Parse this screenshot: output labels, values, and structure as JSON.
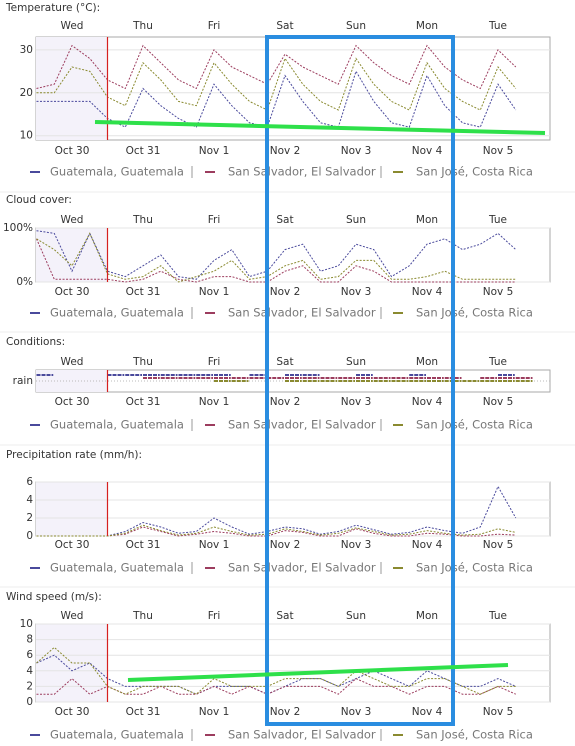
{
  "chart_data": [
    {
      "type": "line",
      "title": "Temperature (°C):",
      "weekdays": [
        "Wed",
        "Thu",
        "Fri",
        "Sat",
        "Sun",
        "Mon",
        "Tue"
      ],
      "categories": [
        null,
        null,
        "Oct 30",
        null,
        null,
        null,
        "Oct 31",
        null,
        null,
        null,
        "Nov 1",
        null,
        null,
        null,
        "Nov 2",
        null,
        null,
        null,
        "Nov 3",
        null,
        null,
        null,
        "Nov 4",
        null,
        null,
        null,
        "Nov 5",
        null
      ],
      "series": [
        {
          "name": "Guatemala, Guatemala",
          "color": "#4a4a9c",
          "values": [
            18,
            18,
            18,
            18,
            14,
            12,
            21,
            17,
            14,
            12,
            22,
            17,
            13,
            12,
            24,
            18,
            13,
            12,
            25,
            18,
            13,
            12,
            24,
            17,
            13,
            12,
            22,
            16
          ]
        },
        {
          "name": "San Salvador, El Salvador",
          "color": "#9c3d5e",
          "values": [
            21,
            22,
            31,
            28,
            23,
            21,
            31,
            27,
            23,
            21,
            30,
            26,
            24,
            22,
            29,
            26,
            24,
            22,
            31,
            27,
            24,
            22,
            31,
            26,
            23,
            21,
            30,
            26
          ]
        },
        {
          "name": "San José, Costa Rica",
          "color": "#8a8a30",
          "values": [
            20,
            20,
            26,
            25,
            19,
            17,
            27,
            23,
            18,
            17,
            27,
            22,
            18,
            16,
            28,
            22,
            18,
            16,
            28,
            22,
            18,
            16,
            27,
            21,
            18,
            16,
            26,
            21
          ]
        }
      ],
      "ylim": [
        9,
        33
      ],
      "yticks": [
        10,
        20,
        30
      ],
      "grid": true
    },
    {
      "type": "line",
      "title": "Cloud cover:",
      "weekdays": [
        "Wed",
        "Thu",
        "Fri",
        "Sat",
        "Sun",
        "Mon",
        "Tue"
      ],
      "categories": [
        null,
        null,
        "Oct 30",
        null,
        null,
        null,
        "Oct 31",
        null,
        null,
        null,
        "Nov 1",
        null,
        null,
        null,
        "Nov 2",
        null,
        null,
        null,
        "Nov 3",
        null,
        null,
        null,
        "Nov 4",
        null,
        null,
        null,
        "Nov 5",
        null
      ],
      "series": [
        {
          "name": "Guatemala, Guatemala",
          "color": "#4a4a9c",
          "values": [
            95,
            90,
            20,
            90,
            20,
            10,
            30,
            50,
            10,
            5,
            40,
            60,
            10,
            20,
            60,
            70,
            20,
            30,
            70,
            60,
            10,
            30,
            70,
            80,
            60,
            70,
            90,
            60
          ]
        },
        {
          "name": "San Salvador, El Salvador",
          "color": "#9c3d5e",
          "values": [
            80,
            5,
            5,
            5,
            5,
            0,
            5,
            20,
            5,
            0,
            10,
            10,
            0,
            0,
            20,
            30,
            0,
            0,
            30,
            20,
            0,
            0,
            0,
            0,
            0,
            0,
            0,
            0
          ]
        },
        {
          "name": "San José, Costa Rica",
          "color": "#8a8a30",
          "values": [
            80,
            60,
            30,
            90,
            15,
            5,
            10,
            30,
            0,
            10,
            20,
            40,
            5,
            10,
            30,
            40,
            5,
            10,
            40,
            40,
            5,
            5,
            10,
            20,
            5,
            5,
            5,
            5
          ]
        }
      ],
      "ylim": [
        0,
        100
      ],
      "yticks": [
        {
          "value": 0,
          "label": "0%"
        },
        {
          "value": 100,
          "label": "100%"
        }
      ],
      "grid": true
    },
    {
      "type": "strip",
      "title": "Conditions:",
      "weekdays": [
        "Wed",
        "Thu",
        "Fri",
        "Sat",
        "Sun",
        "Mon",
        "Tue"
      ],
      "categories": [
        null,
        null,
        "Oct 30",
        null,
        null,
        null,
        "Oct 31",
        null,
        null,
        null,
        "Nov 1",
        null,
        null,
        null,
        "Nov 2",
        null,
        null,
        null,
        "Nov 3",
        null,
        null,
        null,
        "Nov 4",
        null,
        null,
        null,
        "Nov 5",
        null
      ],
      "ycategories": [
        "rain"
      ],
      "series": [
        {
          "name": "Guatemala, Guatemala",
          "color": "#4a4a9c",
          "values": [
            "rain",
            null,
            null,
            null,
            "rain",
            "rain",
            "rain",
            "rain",
            "rain",
            "rain",
            "rain",
            null,
            "rain",
            null,
            "rain",
            "rain",
            null,
            null,
            "rain",
            null,
            null,
            "rain",
            null,
            null,
            null,
            null,
            "rain",
            null
          ]
        },
        {
          "name": "San Salvador, El Salvador",
          "color": "#9c3d5e",
          "values": [
            null,
            null,
            null,
            null,
            null,
            null,
            "rain",
            "rain",
            "rain",
            "rain",
            "rain",
            "rain",
            "rain",
            "rain",
            "rain",
            "rain",
            "rain",
            "rain",
            "rain",
            "rain",
            "rain",
            "rain",
            "rain",
            "rain",
            null,
            "rain",
            "rain",
            "rain"
          ]
        },
        {
          "name": "San José, Costa Rica",
          "color": "#8a8a30",
          "values": [
            null,
            null,
            null,
            null,
            null,
            null,
            null,
            null,
            null,
            null,
            "rain",
            "rain",
            null,
            null,
            "rain",
            "rain",
            "rain",
            "rain",
            "rain",
            "rain",
            "rain",
            "rain",
            "rain",
            "rain",
            "rain",
            "rain",
            "rain",
            "rain"
          ]
        }
      ]
    },
    {
      "type": "line",
      "title": "Precipitation rate (mm/h):",
      "categories": [
        null,
        null,
        "Oct 30",
        null,
        null,
        null,
        "Oct 31",
        null,
        null,
        null,
        "Nov 1",
        null,
        null,
        null,
        "Nov 2",
        null,
        null,
        null,
        "Nov 3",
        null,
        null,
        null,
        "Nov 4",
        null,
        null,
        null,
        "Nov 5",
        null
      ],
      "series": [
        {
          "name": "Guatemala, Guatemala",
          "color": "#4a4a9c",
          "values": [
            0,
            0,
            0,
            0,
            0,
            0.5,
            1.5,
            1,
            0.3,
            0.5,
            2,
            1,
            0.2,
            0.5,
            1,
            0.8,
            0.2,
            0.5,
            1.2,
            0.7,
            0.2,
            0.4,
            1,
            0.6,
            0.3,
            1,
            5.5,
            2
          ]
        },
        {
          "name": "San Salvador, El Salvador",
          "color": "#9c3d5e",
          "values": [
            0,
            0,
            0,
            0,
            0,
            0.2,
            1,
            0.5,
            0,
            0.2,
            0.5,
            0.3,
            0,
            0,
            0.6,
            0.4,
            0,
            0,
            0.8,
            0.3,
            0,
            0,
            0.3,
            0.2,
            0,
            0,
            0.2,
            0.1
          ]
        },
        {
          "name": "San José, Costa Rica",
          "color": "#8a8a30",
          "values": [
            0,
            0,
            0,
            0,
            0,
            0.3,
            1.2,
            0.6,
            0.1,
            0.3,
            1,
            0.5,
            0.1,
            0.2,
            0.8,
            0.5,
            0.1,
            0.3,
            0.9,
            0.5,
            0.1,
            0.2,
            0.6,
            0.3,
            0.1,
            0.2,
            0.8,
            0.4
          ]
        }
      ],
      "ylim": [
        0,
        6
      ],
      "yticks": [
        0,
        2,
        4,
        6
      ],
      "grid": true
    },
    {
      "type": "line",
      "title": "Wind speed (m/s):",
      "weekdays": [
        "Wed",
        "Thu",
        "Fri",
        "Sat",
        "Sun",
        "Mon",
        "Tue"
      ],
      "categories": [
        null,
        null,
        "Oct 30",
        null,
        null,
        null,
        "Oct 31",
        null,
        null,
        null,
        "Nov 1",
        null,
        null,
        null,
        "Nov 2",
        null,
        null,
        null,
        "Nov 3",
        null,
        null,
        null,
        "Nov 4",
        null,
        null,
        null,
        "Nov 5",
        null
      ],
      "series": [
        {
          "name": "Guatemala, Guatemala",
          "color": "#4a4a9c",
          "values": [
            5,
            6,
            4,
            5,
            3,
            2,
            2,
            2,
            2,
            1,
            2,
            2,
            2,
            1,
            2,
            3,
            3,
            2,
            3,
            4,
            3,
            2,
            4,
            3,
            2,
            2,
            3,
            2
          ]
        },
        {
          "name": "San Salvador, El Salvador",
          "color": "#9c3d5e",
          "values": [
            1,
            1,
            3,
            1,
            2,
            1,
            1,
            2,
            1,
            1,
            2,
            1,
            2,
            1,
            2,
            2,
            2,
            1,
            3,
            2,
            2,
            1,
            2,
            2,
            1,
            1,
            2,
            1
          ]
        },
        {
          "name": "San José, Costa Rica",
          "color": "#8a8a30",
          "values": [
            5,
            7,
            5,
            5,
            2,
            1,
            2,
            2,
            2,
            1,
            3,
            2,
            2,
            2,
            3,
            3,
            3,
            2,
            4,
            3,
            2,
            2,
            3,
            3,
            2,
            1,
            2,
            2
          ]
        }
      ],
      "ylim": [
        0,
        10
      ],
      "yticks": [
        0,
        2,
        4,
        6,
        8,
        10
      ],
      "grid": true
    }
  ]
}
